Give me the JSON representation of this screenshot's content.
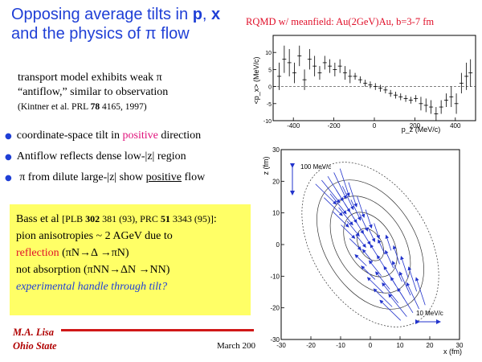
{
  "slide": {
    "title_part1": "Opposing average tilts in ",
    "title_p": "p",
    "title_sep": ", ",
    "title_x": "x",
    "title_line2": "and the physics of ",
    "title_pi": "π",
    "title_flow": " flow",
    "rqmd_label": "RQMD w/ meanfield: Au(2GeV)Au, b=3-7 fm",
    "intro_line1": "transport model exhibits weak π",
    "intro_line2": "“antiflow,” similar to observation",
    "intro_cite_pre": "(Kintner et al. PRL ",
    "intro_cite_vol": "78",
    "intro_cite_post": " 4165, 1997)",
    "bullet1_pre": "coordinate-space tilt in ",
    "bullet1_hl": "positive",
    "bullet1_post": " direction",
    "bullet2": "Antiflow reflects dense low-|z| region",
    "bullet3_pre": " π from dilute large-|z| show ",
    "bullet3_ul": "positive",
    "bullet3_post": " flow",
    "box_line1_a": "Bass et al ",
    "box_line1_b": "[PLB ",
    "box_line1_c": "302",
    "box_line1_d": " 381 (93), PRC ",
    "box_line1_e": "51",
    "box_line1_f": " 3343 (95)]",
    "box_line1_g": ":",
    "box_line2": "pion anisotropies ~ 2 AGeV due to",
    "box_line3_red": "reflection",
    "box_line3_rest": " (πN→Δ →πN)",
    "box_line4": "not absorption (πNN→ΔN →NN)",
    "box_line5": "experimental handle through tilt?",
    "author": "M.A. Lisa",
    "affiliation": "Ohio State",
    "date": "March 200"
  },
  "colors": {
    "title_blue": "#1f3fd6",
    "accent_red": "#e0102a",
    "highlight_pink": "#e0107a",
    "box_yellow": "#ffff66"
  },
  "chart_data": [
    {
      "type": "scatter",
      "title": "",
      "xlabel": "p_z (MeV/c)",
      "ylabel": "<p_x> (MeV/c)",
      "xlim": [
        -500,
        500
      ],
      "ylim": [
        -10,
        15
      ],
      "x_ticks": [
        "-400",
        "-200",
        "0",
        "200",
        "400"
      ],
      "y_ticks": [
        "-10",
        "-5",
        "0",
        "5",
        "10"
      ],
      "x": [
        -470,
        -445,
        -420,
        -395,
        -370,
        -345,
        -320,
        -295,
        -270,
        -245,
        -220,
        -195,
        -170,
        -145,
        -120,
        -95,
        -70,
        -45,
        -20,
        5,
        30,
        55,
        80,
        105,
        130,
        155,
        180,
        205,
        230,
        255,
        280,
        305,
        330,
        355,
        380,
        405,
        430,
        455,
        475
      ],
      "y": [
        3,
        8,
        7,
        4,
        9,
        2,
        8,
        6,
        4,
        7,
        6,
        5,
        6,
        4,
        3,
        3,
        2,
        1,
        0.5,
        0,
        -0.5,
        -1,
        -2,
        -2.5,
        -3,
        -3.5,
        -4,
        -3.5,
        -5,
        -5.5,
        -6,
        -8,
        -6,
        -4,
        -3,
        -5,
        1,
        3,
        4
      ],
      "yerr": [
        4,
        4,
        4,
        3,
        3,
        3,
        3,
        3,
        2,
        2,
        2,
        2,
        2,
        2,
        2,
        1,
        1,
        1,
        1,
        1,
        1,
        1,
        1,
        1,
        1,
        1,
        1,
        1,
        2,
        2,
        2,
        2,
        2,
        2,
        3,
        3,
        3,
        4,
        4
      ]
    },
    {
      "type": "scatter",
      "title": "",
      "xlabel": "x (fm)",
      "ylabel": "z (fm)",
      "xlim": [
        -30,
        30
      ],
      "ylim": [
        -30,
        30
      ],
      "x_ticks": [
        "-30",
        "-20",
        "-10",
        "0",
        "10",
        "20",
        "30"
      ],
      "y_ticks": [
        "-30",
        "-20",
        "-10",
        "0",
        "10",
        "20",
        "30"
      ],
      "annotations": [
        "100 MeV/c",
        "10 MeV/c"
      ]
    }
  ]
}
